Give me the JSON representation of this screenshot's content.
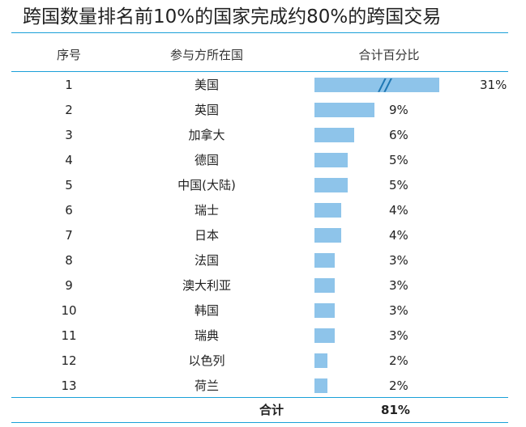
{
  "title": "跨国数量排名前10%的国家完成约80%的跨国交易",
  "headers": {
    "index": "序号",
    "party": "参与方所在国",
    "share": "合计百分比"
  },
  "total": {
    "label": "合计",
    "value": "81%"
  },
  "colors": {
    "rule": "#1aa0d8",
    "bar": "#8ec4ea",
    "break_mark": "#1f78b4"
  },
  "chart_data": {
    "type": "bar",
    "orientation": "horizontal",
    "categories": [
      "美国",
      "英国",
      "加拿大",
      "德国",
      "中国(大陆)",
      "瑞士",
      "日本",
      "法国",
      "澳大利亚",
      "韩国",
      "瑞典",
      "以色列",
      "荷兰"
    ],
    "index_labels": [
      "1",
      "2",
      "3",
      "4",
      "5",
      "6",
      "7",
      "8",
      "9",
      "10",
      "11",
      "12",
      "13"
    ],
    "values": [
      31,
      9,
      6,
      5,
      5,
      4,
      4,
      3,
      3,
      3,
      3,
      2,
      2
    ],
    "value_labels": [
      "31%",
      "9%",
      "6%",
      "5%",
      "5%",
      "4%",
      "4%",
      "3%",
      "3%",
      "3%",
      "3%",
      "2%",
      "2%"
    ],
    "unit": "%",
    "truncated_first_bar": true,
    "break_mark": "//",
    "grid": false
  }
}
